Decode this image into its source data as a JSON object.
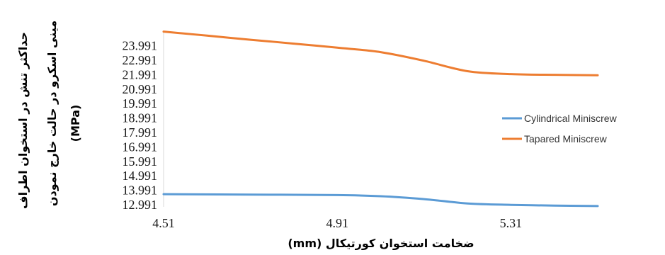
{
  "chart_data": {
    "type": "line",
    "title": "",
    "xlabel": "ضخامت استخوان کورتیکال (mm)",
    "ylabel": [
      "حداکثر تنش در استخوان اطراف",
      "مینی اسکرو در حالت خارج نمودن",
      "(MPa)"
    ],
    "x_ticks": [
      "4.51",
      "4.91",
      "5.31"
    ],
    "y_ticks": [
      "12.991",
      "13.991",
      "14.991",
      "15.991",
      "16.991",
      "17.991",
      "18.991",
      "19.991",
      "20.991",
      "21.991",
      "22.991",
      "23.991"
    ],
    "xlim": [
      4.51,
      5.51
    ],
    "ylim": [
      12.991,
      25.1
    ],
    "grid": false,
    "legend_position": "right",
    "series": [
      {
        "name": "Cylindrical Miniscrew",
        "color": "#5b9bd5",
        "x": [
          4.51,
          4.71,
          4.91,
          5.01,
          5.11,
          5.21,
          5.31,
          5.41,
          5.51
        ],
        "y": [
          13.72,
          13.69,
          13.66,
          13.58,
          13.38,
          13.08,
          12.98,
          12.93,
          12.9
        ]
      },
      {
        "name": "Tapared Miniscrew",
        "color": "#ed7d31",
        "x": [
          4.51,
          4.61,
          4.71,
          4.81,
          4.91,
          5.01,
          5.11,
          5.21,
          5.31,
          5.41,
          5.51
        ],
        "y": [
          24.97,
          24.69,
          24.41,
          24.14,
          23.86,
          23.55,
          22.95,
          22.23,
          22.03,
          21.98,
          21.95
        ]
      }
    ]
  }
}
